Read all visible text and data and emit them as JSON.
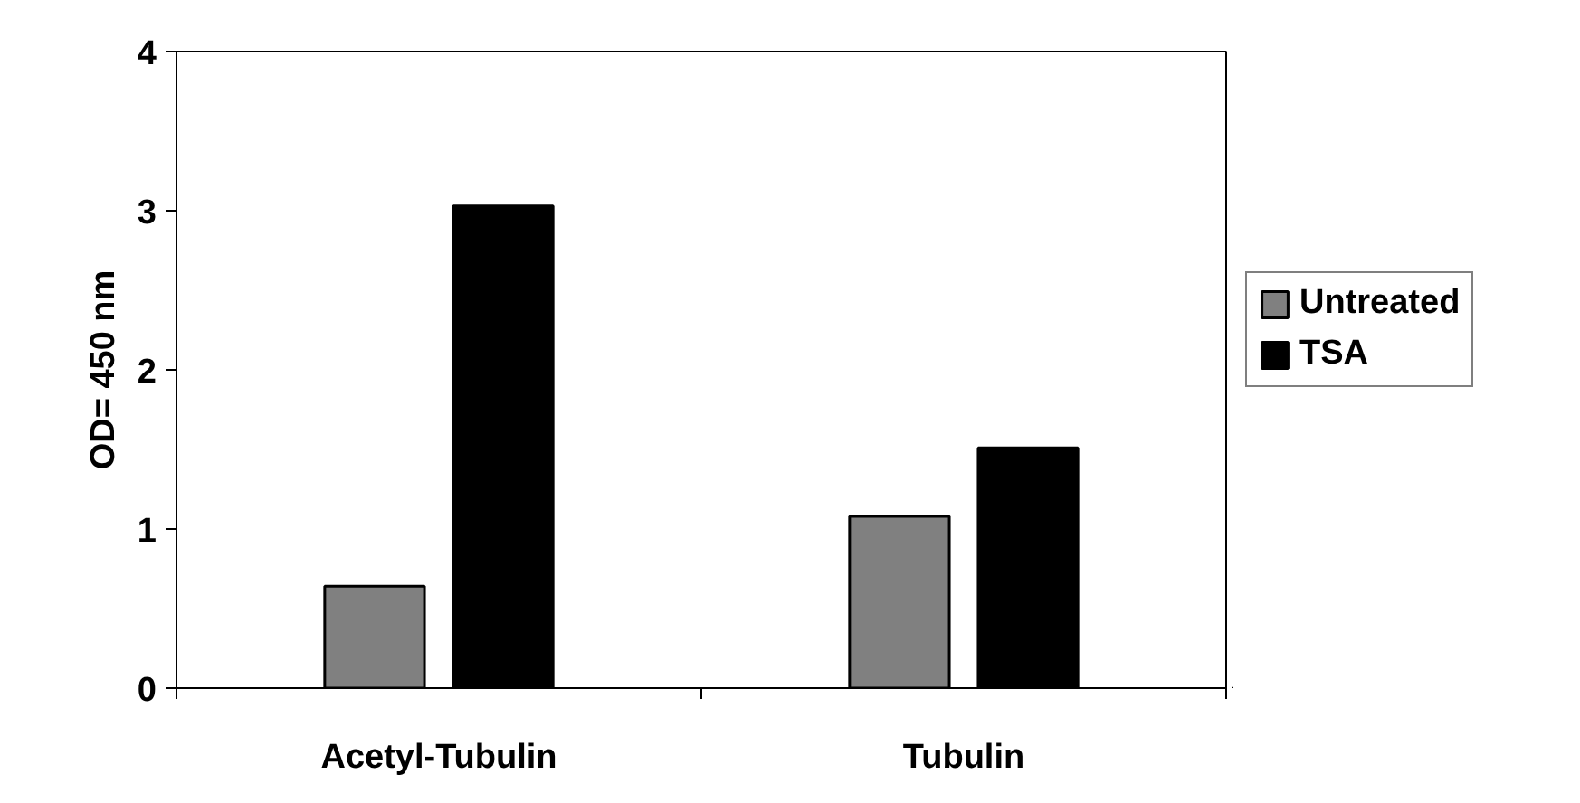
{
  "chart_data": {
    "type": "bar",
    "ylabel": "OD= 450 nm",
    "categories": [
      "Acetyl-Tubulin",
      "Tubulin"
    ],
    "series": [
      {
        "name": "Untreated",
        "color": "#808080",
        "values": [
          0.64,
          1.08
        ]
      },
      {
        "name": "TSA",
        "color": "#000000",
        "values": [
          3.03,
          1.51
        ]
      }
    ],
    "ylim": [
      0,
      4
    ],
    "yticks": [
      0,
      1,
      2,
      3,
      4
    ],
    "grid": false,
    "legend": "right"
  }
}
